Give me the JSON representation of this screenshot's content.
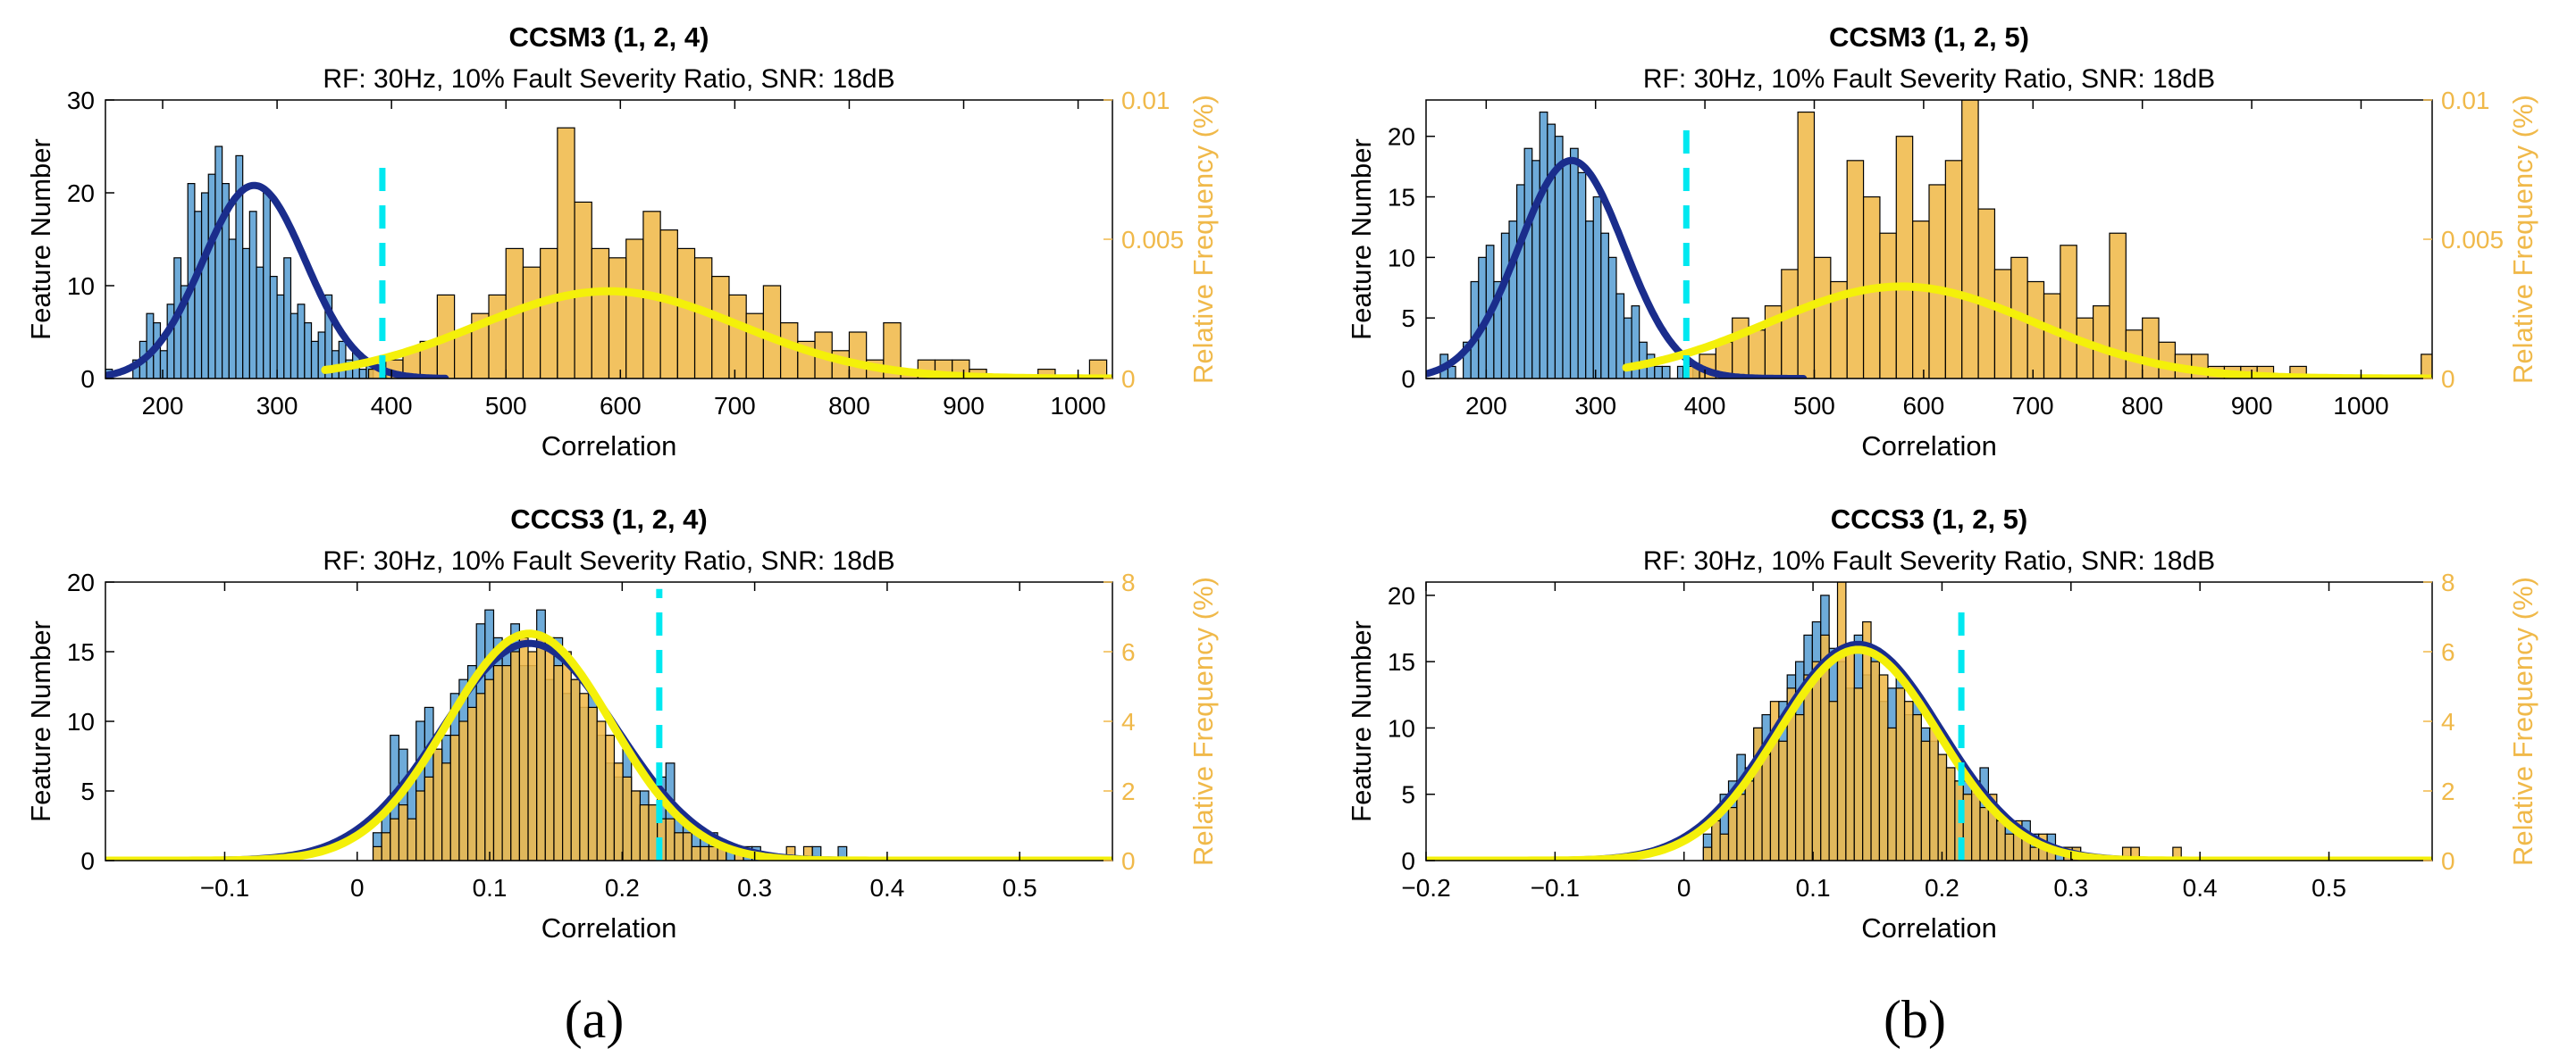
{
  "panel_labels": [
    "(a)",
    "(b)"
  ],
  "colors": {
    "blue_bar": "#5a9fd4",
    "orange_bar": "#f0b94a",
    "blue_fit": "#1a2d8c",
    "yellow_fit": "#f4f00a",
    "threshold": "#00e8f0",
    "right_axis": "#f0b94a"
  },
  "chart_data": [
    {
      "type": "histogram",
      "title": "CCSM3 (1, 2, 4)",
      "subtitle": "RF: 30Hz, 10% Fault Severity Ratio, SNR: 18dB",
      "xlabel": "Correlation",
      "ylabel": "Feature Number",
      "y2label": "Relative Frequency (%)",
      "xlim": [
        150,
        1030
      ],
      "ylim": [
        0,
        30
      ],
      "y2lim": [
        0,
        0.01
      ],
      "xticks": [
        200,
        300,
        400,
        500,
        600,
        700,
        800,
        900,
        1000
      ],
      "xtick_labels": [
        "200",
        "300",
        "400",
        "500",
        "600",
        "700",
        "800",
        "900",
        "1000"
      ],
      "yticks": [
        0,
        10,
        20,
        30
      ],
      "y2ticks": [
        0,
        0.005,
        0.01
      ],
      "y2tick_labels": [
        "0",
        "0.005",
        "0.01"
      ],
      "threshold_x": 392,
      "threshold_ymax": 23.5,
      "series": [
        {
          "kind": "blue",
          "bin_width": 6,
          "bin_starts": [
            150,
            156,
            162,
            168,
            174,
            180,
            186,
            192,
            198,
            204,
            210,
            216,
            222,
            228,
            234,
            240,
            246,
            252,
            258,
            264,
            270,
            276,
            282,
            288,
            294,
            300,
            306,
            312,
            318,
            324,
            330,
            336,
            342,
            348,
            354,
            360,
            366,
            372,
            378,
            384,
            390
          ],
          "values": [
            1,
            0,
            0,
            0,
            2,
            4,
            7,
            6,
            3,
            8,
            13,
            10,
            21,
            18,
            20,
            22,
            25,
            21,
            15,
            24,
            14,
            18,
            12,
            20,
            11,
            9,
            13,
            7,
            8,
            6,
            4,
            5,
            9,
            3,
            4,
            2,
            3,
            1,
            2,
            0,
            1
          ]
        },
        {
          "kind": "orange",
          "bin_width": 15,
          "bin_starts": [
            380,
            395,
            410,
            425,
            440,
            455,
            470,
            485,
            500,
            515,
            530,
            545,
            560,
            575,
            590,
            605,
            620,
            635,
            650,
            665,
            680,
            695,
            710,
            725,
            740,
            755,
            770,
            785,
            800,
            815,
            830,
            845,
            860,
            875,
            890,
            905,
            920,
            935,
            950,
            965,
            980,
            995,
            1010
          ],
          "values": [
            1,
            2,
            3,
            4,
            9,
            5,
            7,
            9,
            14,
            12,
            14,
            27,
            19,
            14,
            13,
            15,
            18,
            16,
            14,
            13,
            11,
            9,
            7,
            10,
            6,
            4,
            5,
            3,
            5,
            2,
            6,
            1,
            2,
            2,
            2,
            1,
            0,
            0,
            0,
            1,
            0,
            0,
            2
          ]
        }
      ],
      "fits": [
        {
          "kind": "blue",
          "mean": 280,
          "sd": 45,
          "peak": 20.8,
          "x_range": [
            150,
            447
          ]
        },
        {
          "kind": "yellow",
          "mean": 590,
          "sd": 115,
          "peak": 9.4,
          "x_range": [
            342,
            1030
          ]
        }
      ]
    },
    {
      "type": "histogram",
      "title": "CCSM3 (1, 2, 5)",
      "subtitle": "RF: 30Hz, 10% Fault Severity Ratio, SNR: 18dB",
      "xlabel": "Correlation",
      "ylabel": "Feature Number",
      "y2label": "Relative Frequency (%)",
      "xlim": [
        145,
        1065
      ],
      "ylim": [
        0,
        23
      ],
      "y2lim": [
        0,
        0.01
      ],
      "xticks": [
        200,
        300,
        400,
        500,
        600,
        700,
        800,
        900,
        1000
      ],
      "xtick_labels": [
        "200",
        "300",
        "400",
        "500",
        "600",
        "700",
        "800",
        "900",
        "1000"
      ],
      "yticks": [
        0,
        5,
        10,
        15,
        20
      ],
      "y2ticks": [
        0,
        0.005,
        0.01
      ],
      "y2tick_labels": [
        "0",
        "0.005",
        "0.01"
      ],
      "threshold_x": 383,
      "threshold_ymax": 21.5,
      "series": [
        {
          "kind": "blue",
          "bin_width": 7,
          "bin_starts": [
            158,
            165,
            172,
            179,
            186,
            193,
            200,
            207,
            214,
            221,
            228,
            235,
            242,
            249,
            256,
            263,
            270,
            277,
            284,
            291,
            298,
            305,
            312,
            319,
            326,
            333,
            340,
            347,
            354,
            361,
            368,
            375,
            382,
            389
          ],
          "values": [
            2,
            1,
            0,
            3,
            8,
            10,
            11,
            8,
            12,
            13,
            16,
            19,
            18,
            22,
            21,
            20,
            18,
            19,
            17,
            13,
            15,
            12,
            10,
            7,
            5,
            6,
            3,
            2,
            1,
            1,
            0,
            1,
            0,
            1
          ]
        },
        {
          "kind": "orange",
          "bin_width": 15,
          "bin_starts": [
            380,
            395,
            410,
            425,
            440,
            455,
            470,
            485,
            500,
            515,
            530,
            545,
            560,
            575,
            590,
            605,
            620,
            635,
            650,
            665,
            680,
            695,
            710,
            725,
            740,
            755,
            770,
            785,
            800,
            815,
            830,
            845,
            860,
            875,
            890,
            905,
            920,
            935,
            950,
            965,
            980,
            995,
            1010,
            1025,
            1040,
            1055
          ],
          "values": [
            1,
            2,
            3,
            5,
            4,
            6,
            9,
            22,
            10,
            8,
            18,
            15,
            12,
            20,
            13,
            16,
            18,
            23,
            14,
            9,
            10,
            8,
            7,
            11,
            5,
            6,
            12,
            4,
            5,
            3,
            2,
            2,
            1,
            1,
            1,
            1,
            0,
            1,
            0,
            0,
            0,
            0,
            0,
            0,
            0,
            2
          ]
        }
      ],
      "fits": [
        {
          "kind": "blue",
          "mean": 278,
          "sd": 48,
          "peak": 18.0,
          "x_range": [
            145,
            490
          ]
        },
        {
          "kind": "yellow",
          "mean": 580,
          "sd": 122,
          "peak": 7.6,
          "x_range": [
            328,
            1065
          ]
        }
      ]
    },
    {
      "type": "histogram",
      "title": "CCCS3 (1, 2, 4)",
      "subtitle": "RF: 30Hz, 10% Fault Severity Ratio, SNR: 18dB",
      "xlabel": "Correlation",
      "ylabel": "Feature Number",
      "y2label": "Relative Frequency (%)",
      "xlim": [
        -0.19,
        0.57
      ],
      "ylim": [
        0,
        20
      ],
      "y2lim": [
        0,
        8
      ],
      "xticks": [
        -0.1,
        0,
        0.1,
        0.2,
        0.3,
        0.4,
        0.5
      ],
      "xtick_labels": [
        "−0.1",
        "0",
        "0.1",
        "0.2",
        "0.3",
        "0.4",
        "0.5"
      ],
      "yticks": [
        0,
        5,
        10,
        15,
        20
      ],
      "y2ticks": [
        0,
        2,
        4,
        6,
        8
      ],
      "y2tick_labels": [
        "0",
        "2",
        "4",
        "6",
        "8"
      ],
      "threshold_x": 0.228,
      "threshold_ymax": 19.5,
      "series": [
        {
          "kind": "blue",
          "bin_width": 0.0065,
          "bin_starts": [
            0.012,
            0.0185,
            0.025,
            0.0315,
            0.038,
            0.0445,
            0.051,
            0.0575,
            0.064,
            0.0705,
            0.077,
            0.0835,
            0.09,
            0.0965,
            0.103,
            0.1095,
            0.116,
            0.1225,
            0.129,
            0.1355,
            0.142,
            0.1485,
            0.155,
            0.1615,
            0.168,
            0.1745,
            0.181,
            0.1875,
            0.194,
            0.2005,
            0.207,
            0.2135,
            0.22,
            0.2265,
            0.233,
            0.2395,
            0.246,
            0.2525,
            0.259,
            0.2655,
            0.272,
            0.2785,
            0.285,
            0.2915,
            0.298,
            0.3045,
            0.311,
            0.3175,
            0.324,
            0.3305,
            0.337,
            0.3435,
            0.35,
            0.3565,
            0.363
          ],
          "values": [
            2,
            4,
            9,
            8,
            6,
            10,
            11,
            8,
            9,
            12,
            13,
            14,
            17,
            18,
            16,
            15,
            17,
            14,
            14,
            18,
            13,
            16,
            12,
            13,
            11,
            12,
            9,
            7,
            6,
            8,
            5,
            5,
            4,
            6,
            7,
            3,
            3,
            2,
            2,
            2,
            1,
            1,
            0,
            1,
            1,
            0,
            0,
            0,
            0,
            0,
            0,
            1,
            0,
            0,
            1
          ]
        },
        {
          "kind": "orange",
          "bin_width": 0.0065,
          "bin_starts": [
            0.012,
            0.0185,
            0.025,
            0.0315,
            0.038,
            0.0445,
            0.051,
            0.0575,
            0.064,
            0.0705,
            0.077,
            0.0835,
            0.09,
            0.0965,
            0.103,
            0.1095,
            0.116,
            0.1225,
            0.129,
            0.1355,
            0.142,
            0.1485,
            0.155,
            0.1615,
            0.168,
            0.1745,
            0.181,
            0.1875,
            0.194,
            0.2005,
            0.207,
            0.2135,
            0.22,
            0.2265,
            0.233,
            0.2395,
            0.246,
            0.2525,
            0.259,
            0.2655,
            0.272,
            0.2785,
            0.285,
            0.2915,
            0.298,
            0.3045,
            0.311,
            0.3175,
            0.324,
            0.3305,
            0.337
          ],
          "values": [
            1,
            2,
            3,
            4,
            3,
            5,
            6,
            8,
            7,
            9,
            10,
            11,
            12,
            13,
            14,
            14,
            15,
            16,
            15,
            16,
            16,
            14,
            15,
            13,
            12,
            11,
            10,
            9,
            7,
            6,
            5,
            4,
            4,
            3,
            3,
            2,
            2,
            1,
            1,
            1,
            1,
            0,
            1,
            0,
            0,
            0,
            0,
            0,
            1,
            0,
            1
          ]
        }
      ],
      "fits": [
        {
          "kind": "blue",
          "mean": 0.13,
          "sd": 0.066,
          "peak": 15.6,
          "x_range": [
            -0.19,
            0.57
          ]
        },
        {
          "kind": "yellow",
          "mean": 0.13,
          "sd": 0.062,
          "peak": 16.3,
          "x_range": [
            -0.19,
            0.57
          ]
        }
      ]
    },
    {
      "type": "histogram",
      "title": "CCCS3 (1, 2, 5)",
      "subtitle": "RF: 30Hz, 10% Fault Severity Ratio, SNR: 18dB",
      "xlabel": "Correlation",
      "ylabel": "Feature Number",
      "y2label": "Relative Frequency (%)",
      "xlim": [
        -0.2,
        0.58
      ],
      "ylim": [
        0,
        21
      ],
      "y2lim": [
        0,
        8
      ],
      "xticks": [
        -0.2,
        -0.1,
        0,
        0.1,
        0.2,
        0.3,
        0.4,
        0.5
      ],
      "xtick_labels": [
        "−0.2",
        "−0.1",
        "0",
        "0.1",
        "0.2",
        "0.3",
        "0.4",
        "0.5"
      ],
      "yticks": [
        0,
        5,
        10,
        15,
        20
      ],
      "y2ticks": [
        0,
        2,
        4,
        6,
        8
      ],
      "y2tick_labels": [
        "0",
        "2",
        "4",
        "6",
        "8"
      ],
      "threshold_x": 0.215,
      "threshold_ymax": 19.5,
      "series": [
        {
          "kind": "blue",
          "bin_width": 0.0065,
          "bin_starts": [
            0.015,
            0.0215,
            0.028,
            0.0345,
            0.041,
            0.0475,
            0.054,
            0.0605,
            0.067,
            0.0735,
            0.08,
            0.0865,
            0.093,
            0.0995,
            0.106,
            0.1125,
            0.119,
            0.1255,
            0.132,
            0.1385,
            0.145,
            0.1515,
            0.158,
            0.1645,
            0.171,
            0.1775,
            0.184,
            0.1905,
            0.197,
            0.2035,
            0.21,
            0.2165,
            0.223,
            0.2295,
            0.236,
            0.2425,
            0.249,
            0.2555,
            0.262,
            0.2685,
            0.275,
            0.2815,
            0.288,
            0.2945,
            0.301
          ],
          "values": [
            2,
            3,
            5,
            6,
            8,
            7,
            10,
            11,
            9,
            12,
            14,
            15,
            17,
            18,
            20,
            16,
            15,
            13,
            17,
            14,
            16,
            12,
            13,
            14,
            11,
            12,
            10,
            9,
            8,
            7,
            6,
            6,
            5,
            7,
            4,
            3,
            3,
            2,
            3,
            2,
            1,
            2,
            1,
            1,
            1
          ]
        },
        {
          "kind": "orange",
          "bin_width": 0.0065,
          "bin_starts": [
            0.015,
            0.0215,
            0.028,
            0.0345,
            0.041,
            0.0475,
            0.054,
            0.0605,
            0.067,
            0.0735,
            0.08,
            0.0865,
            0.093,
            0.0995,
            0.106,
            0.1125,
            0.119,
            0.1255,
            0.132,
            0.1385,
            0.145,
            0.1515,
            0.158,
            0.1645,
            0.171,
            0.1775,
            0.184,
            0.1905,
            0.197,
            0.2035,
            0.21,
            0.2165,
            0.223,
            0.2295,
            0.236,
            0.2425,
            0.249,
            0.2555,
            0.262,
            0.2685,
            0.275,
            0.2815,
            0.288,
            0.2945,
            0.301,
            0.3075,
            0.314,
            0.3205,
            0.327,
            0.3335,
            0.34,
            0.3465,
            0.353,
            0.3595,
            0.366,
            0.3725,
            0.379
          ],
          "values": [
            1,
            3,
            2,
            4,
            5,
            6,
            10,
            8,
            12,
            9,
            13,
            11,
            14,
            15,
            17,
            12,
            21,
            16,
            13,
            18,
            15,
            14,
            10,
            13,
            12,
            11,
            9,
            10,
            8,
            7,
            6,
            5,
            6,
            4,
            5,
            3,
            2,
            3,
            2,
            1,
            2,
            1,
            0,
            1,
            1,
            0,
            0,
            0,
            0,
            0,
            1,
            1,
            0,
            0,
            0,
            0,
            1
          ]
        }
      ],
      "fits": [
        {
          "kind": "blue",
          "mean": 0.135,
          "sd": 0.064,
          "peak": 16.3,
          "x_range": [
            -0.2,
            0.58
          ]
        },
        {
          "kind": "yellow",
          "mean": 0.135,
          "sd": 0.062,
          "peak": 15.9,
          "x_range": [
            -0.2,
            0.58
          ]
        }
      ]
    }
  ]
}
